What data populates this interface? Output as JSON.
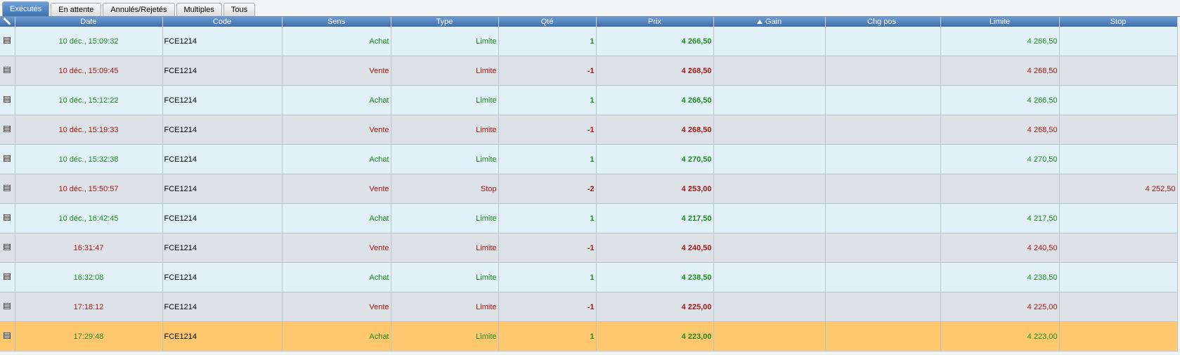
{
  "tabs": [
    "Exécutés",
    "En attente",
    "Annulés/Rejetés",
    "Multiples",
    "Tous"
  ],
  "active_tab": 0,
  "table": {
    "headers": {
      "date": "Date",
      "code": "Code",
      "sens": "Sens",
      "type": "Type",
      "qte": "Qté",
      "prix": "Prix",
      "gain": "Gain",
      "chg": "Chg pos.",
      "limite": "Limite",
      "stop": "Stop"
    },
    "rows": [
      {
        "date": "10 déc., 15:09:32",
        "code": "FCE1214",
        "sens": "Achat",
        "type": "Limite",
        "qte": "1",
        "prix": "4 266,50",
        "limite": "4 266,50",
        "color": "#1e8a1e"
      },
      {
        "date": "10 déc., 15:09:45",
        "code": "FCE1214",
        "sens": "Vente",
        "type": "Limite",
        "qte": "-1",
        "prix": "4 268,50",
        "limite": "4 268,50",
        "color": "#a01818"
      },
      {
        "date": "10 déc., 15:12:22",
        "code": "FCE1214",
        "sens": "Achat",
        "type": "Limite",
        "qte": "1",
        "prix": "4 266,50",
        "limite": "4 266,50",
        "color": "#1e8a1e"
      },
      {
        "date": "10 déc., 15:19:33",
        "code": "FCE1214",
        "sens": "Vente",
        "type": "Limite",
        "qte": "-1",
        "prix": "4 268,50",
        "limite": "4 268,50",
        "color": "#a01818"
      },
      {
        "date": "10 déc., 15:32:38",
        "code": "FCE1214",
        "sens": "Achat",
        "type": "Limite",
        "qte": "1",
        "prix": "4 270,50",
        "limite": "4 270,50",
        "color": "#1e8a1e"
      },
      {
        "date": "10 déc., 15:50:57",
        "code": "FCE1214",
        "sens": "Vente",
        "type": "Stop",
        "qte": "-2",
        "prix": "4 253,00",
        "stop": "4 252,50",
        "color": "#a01818"
      },
      {
        "date": "10 déc., 16:42:45",
        "code": "FCE1214",
        "sens": "Achat",
        "type": "Limite",
        "qte": "1",
        "prix": "4 217,50",
        "limite": "4 217,50",
        "color": "#1e8a1e"
      },
      {
        "date": "16:31:47",
        "code": "FCE1214",
        "sens": "Vente",
        "type": "Limite",
        "qte": "-1",
        "prix": "4 240,50",
        "limite": "4 240,50",
        "color": "#a01818"
      },
      {
        "date": "16:32:08",
        "code": "FCE1214",
        "sens": "Achat",
        "type": "Limite",
        "qte": "1",
        "prix": "4 238,50",
        "limite": "4 238,50",
        "color": "#1e8a1e"
      },
      {
        "date": "17:18:12",
        "code": "FCE1214",
        "sens": "Vente",
        "type": "Limite",
        "qte": "-1",
        "prix": "4 225,00",
        "limite": "4 225,00",
        "color": "#a01818"
      },
      {
        "date": "17:29:48",
        "code": "FCE1214",
        "sens": "Achat",
        "type": "Limite",
        "qte": "1",
        "prix": "4 223,00",
        "limite": "4 223,00",
        "color": "#1e8a1e",
        "highlighted": true
      }
    ]
  }
}
